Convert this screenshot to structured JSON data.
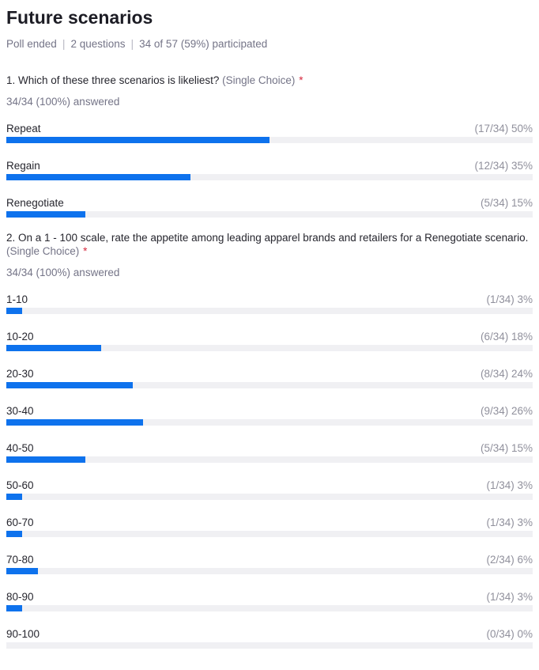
{
  "header": {
    "title": "Future scenarios",
    "meta": [
      "Poll ended",
      "2 questions",
      "34 of 57 (59%) participated"
    ],
    "separator": "|"
  },
  "colors": {
    "accent_bar": "#0e72ed",
    "bar_track": "#f0f0f3",
    "muted_text": "#747487",
    "stat_text": "#90909c",
    "required_mark": "#d6293e"
  },
  "questions": [
    {
      "title": "1. Which of these three scenarios is likeliest?",
      "type_label": "(Single Choice)",
      "required_mark": "*",
      "answered": "34/34 (100%) answered",
      "options": [
        {
          "label": "Repeat",
          "stat": "(17/34) 50%",
          "count": 17,
          "total": 34,
          "pct": 50
        },
        {
          "label": "Regain",
          "stat": "(12/34) 35%",
          "count": 12,
          "total": 34,
          "pct": 35
        },
        {
          "label": "Renegotiate",
          "stat": "(5/34) 15%",
          "count": 5,
          "total": 34,
          "pct": 15
        }
      ]
    },
    {
      "title": "2. On a 1 - 100 scale, rate the appetite among leading apparel brands and retailers for a Renegotiate scenario.",
      "type_label": "(Single Choice)",
      "required_mark": "*",
      "answered": "34/34 (100%) answered",
      "options": [
        {
          "label": "1-10",
          "stat": "(1/34) 3%",
          "count": 1,
          "total": 34,
          "pct": 3
        },
        {
          "label": "10-20",
          "stat": "(6/34) 18%",
          "count": 6,
          "total": 34,
          "pct": 18
        },
        {
          "label": "20-30",
          "stat": "(8/34) 24%",
          "count": 8,
          "total": 34,
          "pct": 24
        },
        {
          "label": "30-40",
          "stat": "(9/34) 26%",
          "count": 9,
          "total": 34,
          "pct": 26
        },
        {
          "label": "40-50",
          "stat": "(5/34) 15%",
          "count": 5,
          "total": 34,
          "pct": 15
        },
        {
          "label": "50-60",
          "stat": "(1/34) 3%",
          "count": 1,
          "total": 34,
          "pct": 3
        },
        {
          "label": "60-70",
          "stat": "(1/34) 3%",
          "count": 1,
          "total": 34,
          "pct": 3
        },
        {
          "label": "70-80",
          "stat": "(2/34) 6%",
          "count": 2,
          "total": 34,
          "pct": 6
        },
        {
          "label": "80-90",
          "stat": "(1/34) 3%",
          "count": 1,
          "total": 34,
          "pct": 3
        },
        {
          "label": "90-100",
          "stat": "(0/34) 0%",
          "count": 0,
          "total": 34,
          "pct": 0
        }
      ]
    }
  ]
}
